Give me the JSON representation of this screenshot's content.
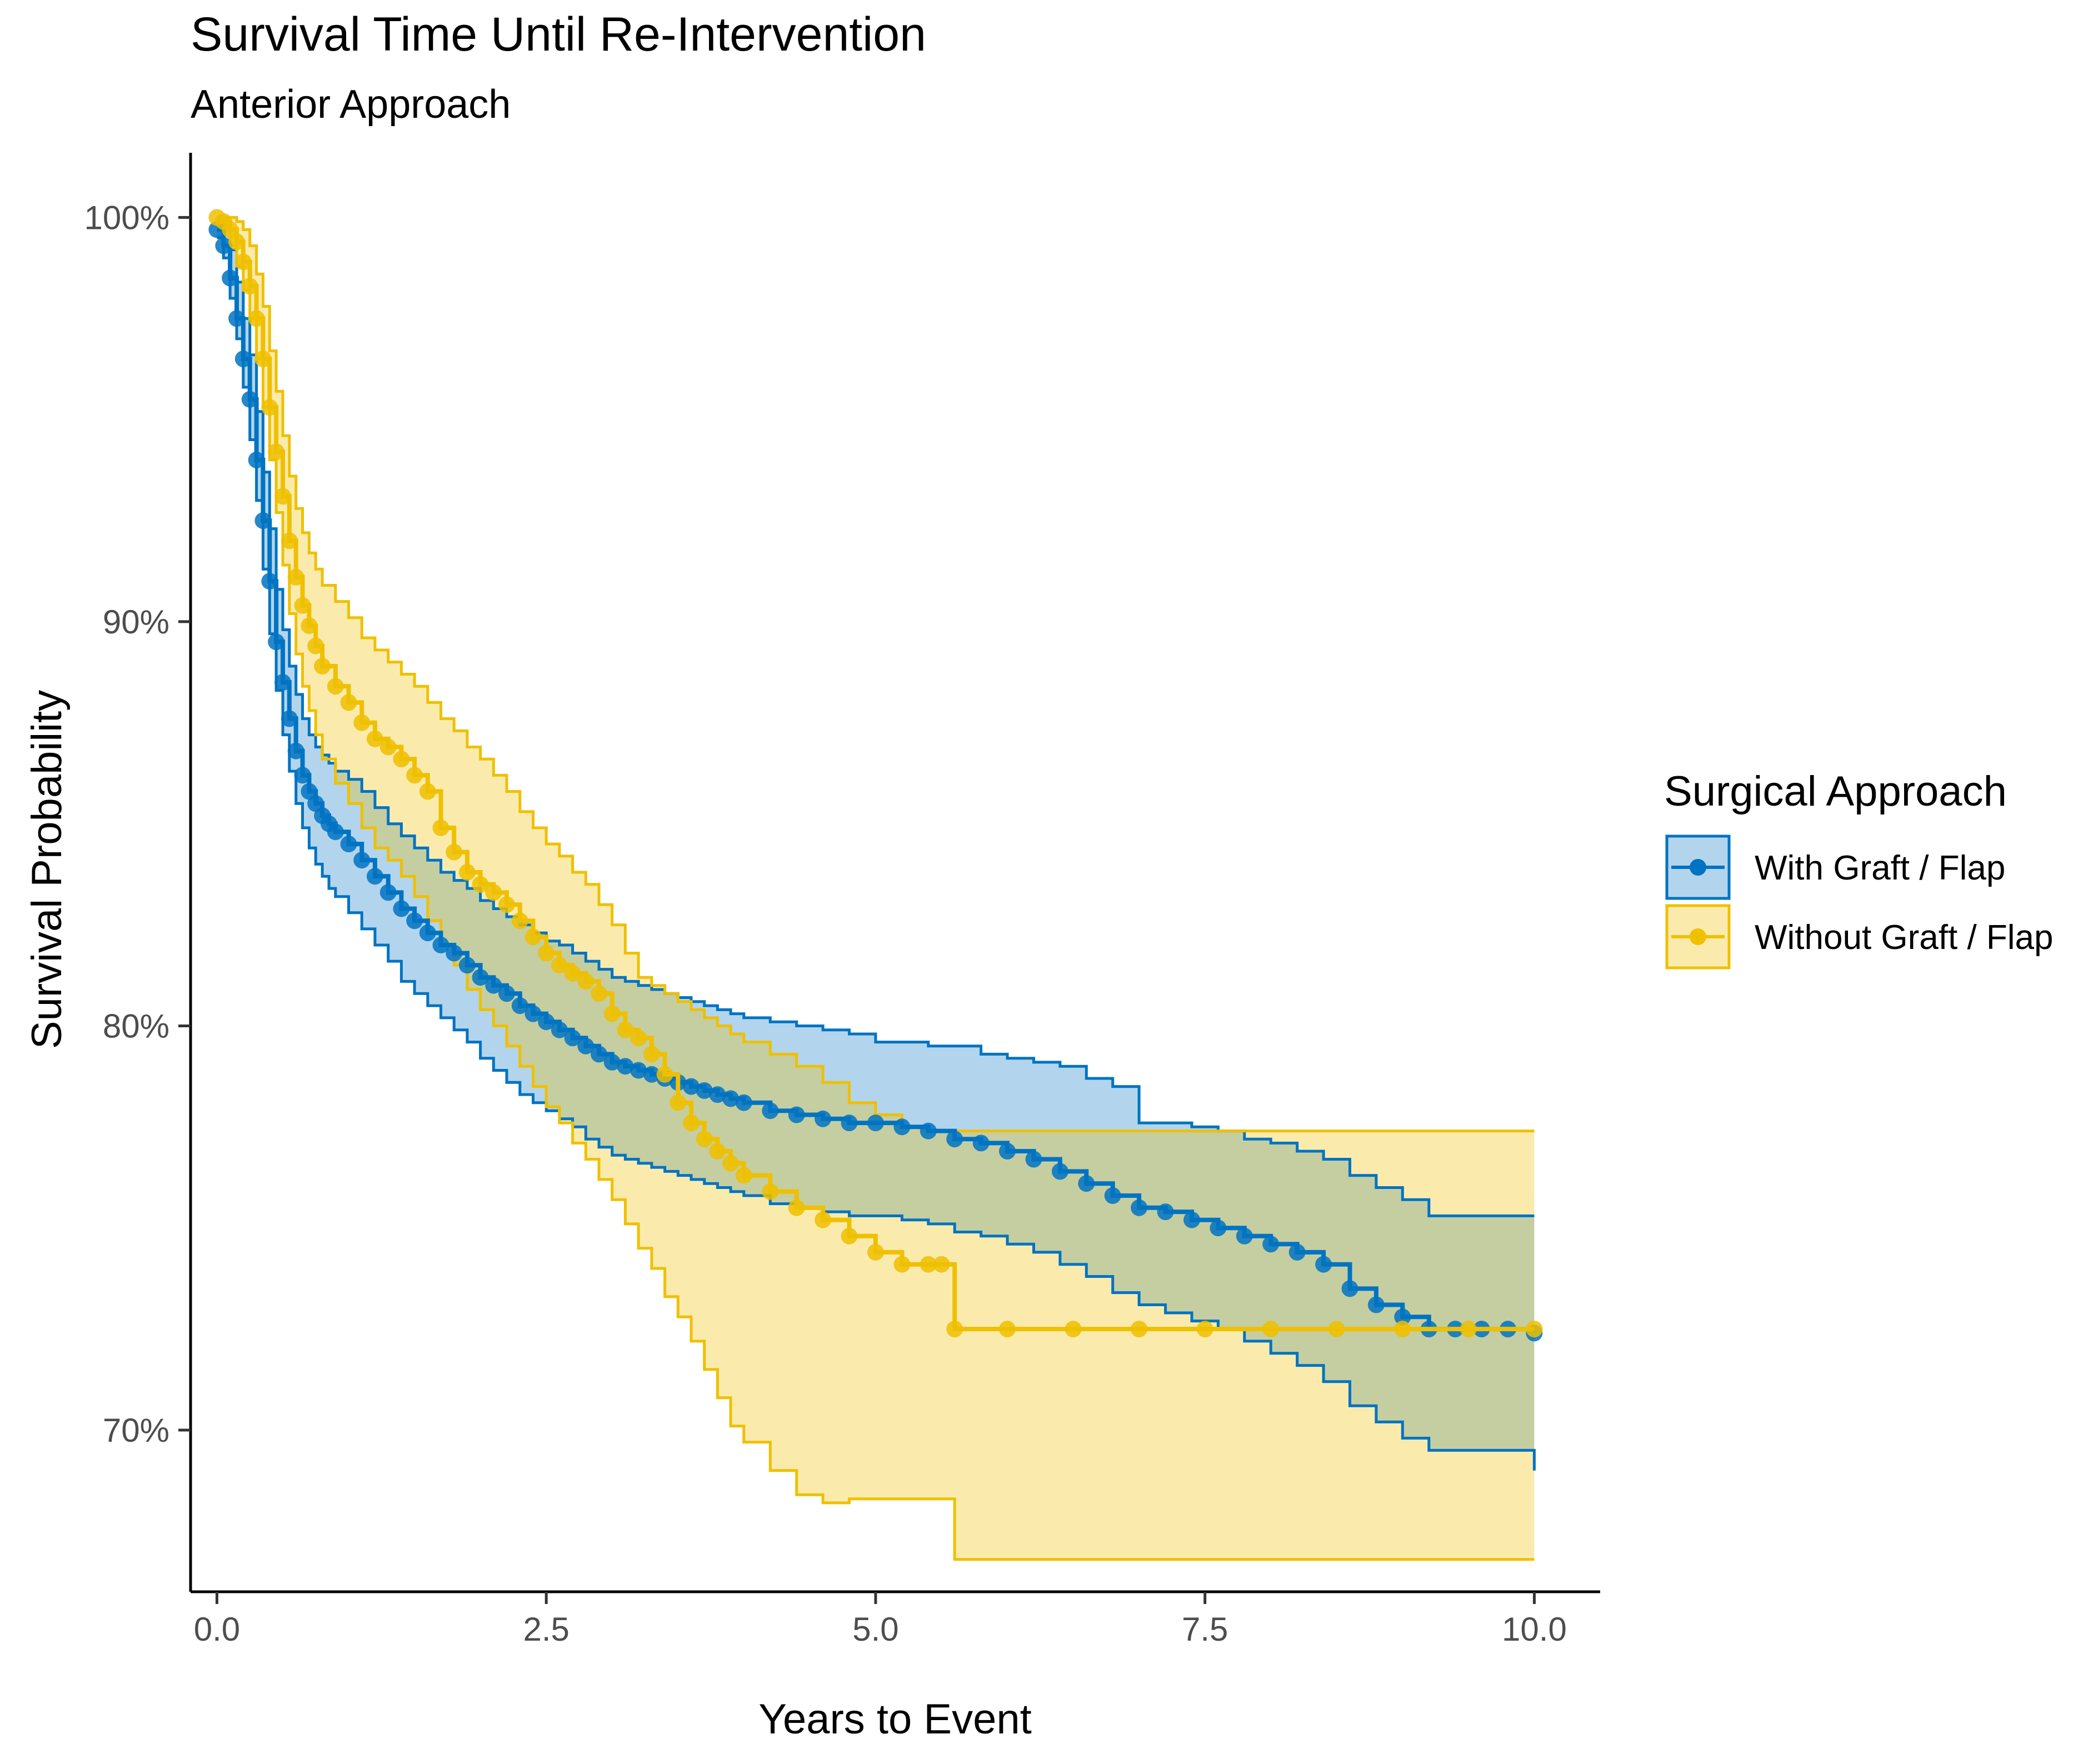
{
  "chart_data": {
    "type": "line",
    "subtype": "kaplan-meier",
    "title": "Survival Time Until Re-Intervention",
    "subtitle": "Anterior Approach",
    "xlabel": "Years to Event",
    "ylabel": "Survival Probability",
    "xlim": [
      -0.2,
      10.5
    ],
    "ylim": [
      0.66,
      1.016
    ],
    "x_ticks": [
      {
        "value": 0,
        "label": "0.0"
      },
      {
        "value": 2.5,
        "label": "2.5"
      },
      {
        "value": 5,
        "label": "5.0"
      },
      {
        "value": 7.5,
        "label": "7.5"
      },
      {
        "value": 10,
        "label": "10.0"
      }
    ],
    "y_ticks": [
      {
        "value": 0.7,
        "label": "70%"
      },
      {
        "value": 0.8,
        "label": "80%"
      },
      {
        "value": 0.9,
        "label": "90%"
      },
      {
        "value": 1.0,
        "label": "100%"
      }
    ],
    "grid": false,
    "legend": {
      "title": "Surgical Approach",
      "position": "right"
    },
    "series": [
      {
        "name": "With Graft / Flap",
        "color": "#0073C2",
        "fill": "#0073C2",
        "fill_opacity": 0.3,
        "x": [
          0,
          0.05,
          0.1,
          0.15,
          0.2,
          0.25,
          0.3,
          0.35,
          0.4,
          0.45,
          0.5,
          0.55,
          0.6,
          0.65,
          0.7,
          0.75,
          0.8,
          0.85,
          0.9,
          1.0,
          1.1,
          1.2,
          1.3,
          1.4,
          1.5,
          1.6,
          1.7,
          1.8,
          1.9,
          2.0,
          2.1,
          2.2,
          2.3,
          2.4,
          2.5,
          2.6,
          2.7,
          2.8,
          2.9,
          3.0,
          3.1,
          3.2,
          3.3,
          3.4,
          3.5,
          3.6,
          3.7,
          3.8,
          3.9,
          4.0,
          4.2,
          4.4,
          4.6,
          4.8,
          5.0,
          5.2,
          5.4,
          5.6,
          5.8,
          6.0,
          6.2,
          6.4,
          6.6,
          6.8,
          7.0,
          7.2,
          7.4,
          7.6,
          7.8,
          8.0,
          8.2,
          8.4,
          8.6,
          8.8,
          9.0,
          9.2,
          9.4,
          9.6,
          9.8,
          10.0
        ],
        "y": [
          0.997,
          0.993,
          0.985,
          0.975,
          0.965,
          0.955,
          0.94,
          0.925,
          0.91,
          0.895,
          0.885,
          0.876,
          0.868,
          0.862,
          0.858,
          0.855,
          0.852,
          0.85,
          0.848,
          0.845,
          0.841,
          0.837,
          0.833,
          0.829,
          0.826,
          0.823,
          0.82,
          0.818,
          0.815,
          0.812,
          0.81,
          0.808,
          0.805,
          0.803,
          0.801,
          0.799,
          0.797,
          0.795,
          0.793,
          0.791,
          0.79,
          0.789,
          0.788,
          0.787,
          0.786,
          0.785,
          0.784,
          0.783,
          0.782,
          0.781,
          0.779,
          0.778,
          0.777,
          0.776,
          0.776,
          0.775,
          0.774,
          0.772,
          0.771,
          0.769,
          0.767,
          0.764,
          0.761,
          0.758,
          0.755,
          0.754,
          0.752,
          0.75,
          0.748,
          0.746,
          0.744,
          0.741,
          0.735,
          0.731,
          0.728,
          0.725,
          0.725,
          0.725,
          0.725,
          0.724
        ],
        "ci_lower": [
          0.995,
          0.99,
          0.98,
          0.97,
          0.958,
          0.945,
          0.93,
          0.913,
          0.897,
          0.883,
          0.872,
          0.863,
          0.855,
          0.849,
          0.844,
          0.84,
          0.837,
          0.834,
          0.832,
          0.828,
          0.824,
          0.82,
          0.816,
          0.811,
          0.808,
          0.805,
          0.802,
          0.799,
          0.796,
          0.792,
          0.789,
          0.786,
          0.783,
          0.781,
          0.779,
          0.777,
          0.775,
          0.772,
          0.77,
          0.768,
          0.767,
          0.766,
          0.765,
          0.764,
          0.763,
          0.762,
          0.761,
          0.76,
          0.759,
          0.758,
          0.756,
          0.755,
          0.754,
          0.753,
          0.753,
          0.752,
          0.751,
          0.749,
          0.748,
          0.746,
          0.744,
          0.741,
          0.738,
          0.734,
          0.731,
          0.729,
          0.727,
          0.725,
          0.722,
          0.719,
          0.716,
          0.712,
          0.706,
          0.702,
          0.698,
          0.695,
          0.695,
          0.695,
          0.695,
          0.69
        ],
        "ci_upper": [
          1.0,
          0.997,
          0.992,
          0.984,
          0.975,
          0.966,
          0.952,
          0.937,
          0.923,
          0.908,
          0.898,
          0.889,
          0.882,
          0.876,
          0.872,
          0.869,
          0.867,
          0.865,
          0.863,
          0.861,
          0.858,
          0.854,
          0.85,
          0.847,
          0.844,
          0.841,
          0.838,
          0.836,
          0.834,
          0.831,
          0.829,
          0.827,
          0.825,
          0.823,
          0.821,
          0.82,
          0.818,
          0.816,
          0.814,
          0.812,
          0.811,
          0.81,
          0.809,
          0.808,
          0.807,
          0.806,
          0.805,
          0.804,
          0.803,
          0.802,
          0.801,
          0.8,
          0.799,
          0.798,
          0.796,
          0.796,
          0.795,
          0.795,
          0.793,
          0.792,
          0.791,
          0.79,
          0.787,
          0.785,
          0.776,
          0.776,
          0.775,
          0.774,
          0.772,
          0.771,
          0.769,
          0.767,
          0.763,
          0.76,
          0.757,
          0.753,
          0.753,
          0.753,
          0.753,
          0.753
        ]
      },
      {
        "name": "Without Graft / Flap",
        "color": "#EFC000",
        "fill": "#EFC000",
        "fill_opacity": 0.32,
        "x": [
          0,
          0.05,
          0.1,
          0.15,
          0.2,
          0.25,
          0.3,
          0.35,
          0.4,
          0.45,
          0.5,
          0.55,
          0.6,
          0.65,
          0.7,
          0.75,
          0.8,
          0.9,
          1.0,
          1.1,
          1.2,
          1.3,
          1.4,
          1.5,
          1.6,
          1.7,
          1.8,
          1.9,
          2.0,
          2.1,
          2.2,
          2.3,
          2.4,
          2.5,
          2.6,
          2.7,
          2.8,
          2.9,
          3.0,
          3.1,
          3.2,
          3.3,
          3.4,
          3.5,
          3.6,
          3.7,
          3.8,
          3.9,
          4.0,
          4.2,
          4.4,
          4.6,
          4.8,
          5.0,
          5.2,
          5.4,
          5.5,
          5.6,
          6.0,
          6.5,
          7.0,
          7.5,
          8.0,
          8.5,
          9.0,
          9.5,
          10.0
        ],
        "y": [
          1.0,
          0.999,
          0.997,
          0.994,
          0.989,
          0.983,
          0.975,
          0.965,
          0.953,
          0.942,
          0.931,
          0.92,
          0.911,
          0.904,
          0.899,
          0.894,
          0.889,
          0.884,
          0.88,
          0.875,
          0.871,
          0.869,
          0.866,
          0.862,
          0.858,
          0.849,
          0.843,
          0.838,
          0.835,
          0.833,
          0.83,
          0.826,
          0.822,
          0.818,
          0.815,
          0.813,
          0.811,
          0.808,
          0.803,
          0.799,
          0.797,
          0.793,
          0.788,
          0.781,
          0.776,
          0.772,
          0.769,
          0.766,
          0.763,
          0.759,
          0.755,
          0.752,
          0.748,
          0.744,
          0.741,
          0.741,
          0.741,
          0.725,
          0.725,
          0.725,
          0.725,
          0.725,
          0.725,
          0.725,
          0.725,
          0.725,
          0.725
        ],
        "ci_lower": [
          0.999,
          0.997,
          0.993,
          0.988,
          0.982,
          0.975,
          0.965,
          0.953,
          0.94,
          0.927,
          0.914,
          0.902,
          0.892,
          0.884,
          0.878,
          0.872,
          0.866,
          0.86,
          0.855,
          0.849,
          0.844,
          0.841,
          0.837,
          0.832,
          0.826,
          0.82,
          0.815,
          0.809,
          0.804,
          0.8,
          0.795,
          0.79,
          0.785,
          0.78,
          0.776,
          0.771,
          0.767,
          0.762,
          0.757,
          0.751,
          0.745,
          0.74,
          0.733,
          0.728,
          0.722,
          0.715,
          0.708,
          0.701,
          0.697,
          0.69,
          0.684,
          0.682,
          0.683,
          0.683,
          0.683,
          0.683,
          0.683,
          0.668,
          0.668,
          0.668,
          0.668,
          0.668,
          0.668,
          0.668,
          0.668,
          0.668,
          0.668
        ],
        "ci_upper": [
          1.0,
          1.0,
          1.0,
          0.999,
          0.997,
          0.993,
          0.986,
          0.978,
          0.967,
          0.957,
          0.946,
          0.936,
          0.928,
          0.922,
          0.917,
          0.913,
          0.909,
          0.905,
          0.901,
          0.896,
          0.893,
          0.89,
          0.887,
          0.884,
          0.88,
          0.876,
          0.873,
          0.869,
          0.866,
          0.862,
          0.858,
          0.853,
          0.849,
          0.845,
          0.842,
          0.838,
          0.835,
          0.83,
          0.825,
          0.818,
          0.812,
          0.81,
          0.808,
          0.806,
          0.804,
          0.802,
          0.8,
          0.798,
          0.796,
          0.793,
          0.79,
          0.786,
          0.781,
          0.778,
          0.775,
          0.774,
          0.774,
          0.774,
          0.774,
          0.774,
          0.774,
          0.774,
          0.774,
          0.774,
          0.774,
          0.774,
          0.774
        ]
      }
    ]
  }
}
